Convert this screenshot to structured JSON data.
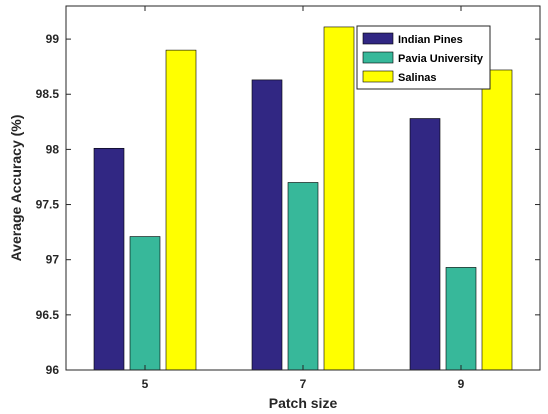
{
  "chart_data": {
    "type": "bar",
    "xlabel": "Patch size",
    "ylabel": "Average Accuracy (%)",
    "categories": [
      "5",
      "7",
      "9"
    ],
    "ylim": [
      96,
      99.3
    ],
    "yticks": [
      "96",
      "96.5",
      "97",
      "97.5",
      "98",
      "98.5",
      "99"
    ],
    "grid": false,
    "legend_position": "top-right",
    "series": [
      {
        "name": "Indian Pines",
        "color": "#312783",
        "values": [
          98.01,
          98.63,
          98.28
        ]
      },
      {
        "name": "Pavia University",
        "color": "#37B89A",
        "values": [
          97.21,
          97.7,
          96.93
        ]
      },
      {
        "name": "Salinas",
        "color": "#FFFF00",
        "values": [
          98.9,
          99.11,
          98.72
        ]
      }
    ]
  }
}
